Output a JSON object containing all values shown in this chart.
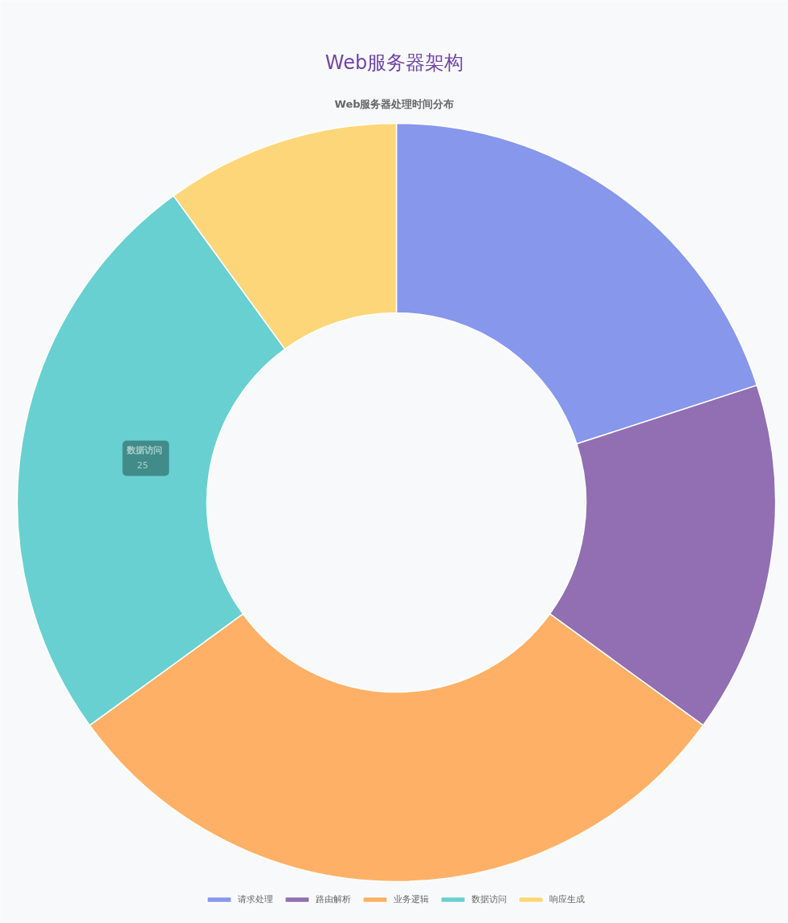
{
  "chart_data": {
    "type": "donut",
    "title": "Web服务器架构",
    "subtitle": "Web服务器处理时间分布",
    "categories": [
      "请求处理",
      "路由解析",
      "业务逻辑",
      "数据访问",
      "响应生成"
    ],
    "values": [
      20,
      15,
      30,
      25,
      10
    ],
    "colors": [
      "#8797ec",
      "#916fb2",
      "#feb166",
      "#68d0d0",
      "#fed67a"
    ],
    "annotations": [
      "数据访问",
      "25"
    ],
    "legend": "bottom"
  }
}
